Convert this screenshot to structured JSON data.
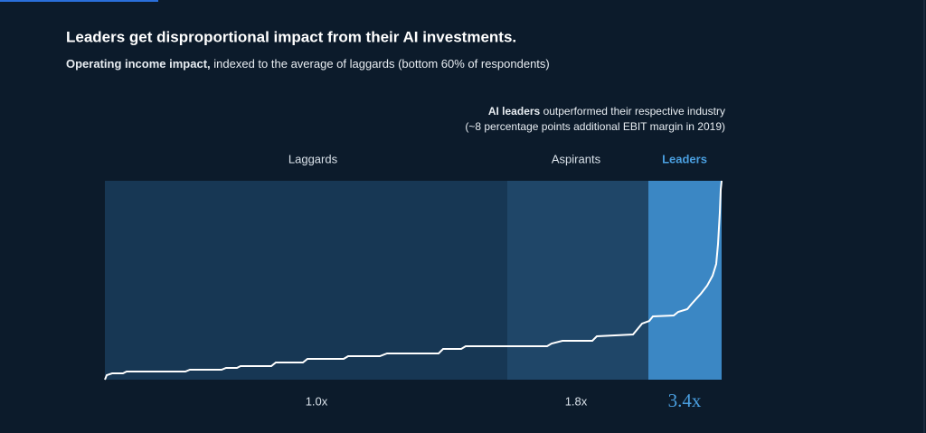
{
  "header": {
    "title": "Leaders get disproportional impact from their AI investments.",
    "subtitle_bold": "Operating income impact,",
    "subtitle": "indexed to the average of laggards (bottom 60% of respondents)"
  },
  "annotation": {
    "bold": "AI leaders",
    "line1": "outperformed their respective industry",
    "line2": "(~8 percentage points additional EBIT margin in 2019)"
  },
  "segments": [
    {
      "label": "Laggards",
      "multiplier": "1.0x"
    },
    {
      "label": "Aspirants",
      "multiplier": "1.8x"
    },
    {
      "label": "Leaders",
      "multiplier": "3.4x"
    }
  ]
}
